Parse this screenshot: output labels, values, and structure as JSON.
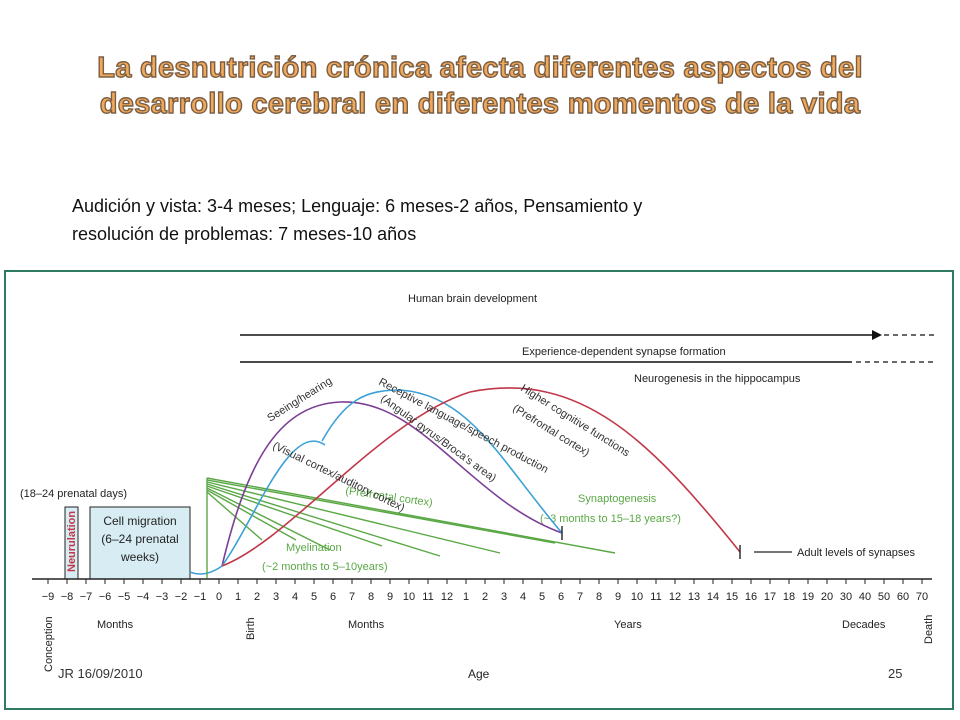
{
  "title": {
    "line1": "La desnutrición crónica afecta diferentes aspectos del",
    "line2": "desarrollo cerebral en diferentes momentos de la vida"
  },
  "subtitle": {
    "line1": "Audición y vista: 3-4 meses;  Lenguaje: 6 meses-2 años, Pensamiento y",
    "line2": "resolución de problemas: 7 meses-10 años"
  },
  "figure": {
    "header": "Human brain development",
    "bar_synapse": "Experience-dependent synapse formation",
    "bar_neurogenesis": "Neurogenesis in the hippocampus",
    "prenatal_days": "(18–24 prenatal days)",
    "neurulation": "Neurulation",
    "cell_migration": [
      "Cell migration",
      "(6–24 prenatal",
      "weeks)"
    ],
    "seeing": [
      "Seeing/hearing",
      "(Visual cortex/auditory cortex)"
    ],
    "language": [
      "Receptive language/speech production",
      "(Angular gyrus/Broca's area)"
    ],
    "cognitive": [
      "Higher cognitive functions",
      "(Prefrontal cortex)"
    ],
    "prefrontal": "(Prefrontal cortex)",
    "synaptogenesis": [
      "Synaptogenesis",
      "(~3 months to 15–18 years?)"
    ],
    "myelination": [
      "Myelination",
      "(~2 months to 5–10years)"
    ],
    "adult_levels": "Adult levels of synapses",
    "axis_ticks": [
      "−9",
      "−8",
      "−7",
      "−6",
      "−5",
      "−4",
      "−3",
      "−2",
      "−1",
      "0",
      "1",
      "2",
      "3",
      "4",
      "5",
      "6",
      "7",
      "8",
      "9",
      "10",
      "11",
      "12",
      "1",
      "2",
      "3",
      "4",
      "5",
      "6",
      "7",
      "8",
      "9",
      "10",
      "11",
      "12",
      "13",
      "14",
      "15",
      "16",
      "17",
      "18",
      "19",
      "20",
      "30",
      "40",
      "50",
      "60",
      "70"
    ],
    "axis_labels": {
      "conception": "Conception",
      "months1": "Months",
      "birth": "Birth",
      "months2": "Months",
      "years": "Years",
      "decades": "Decades",
      "death": "Death",
      "age": "Age"
    },
    "colors": {
      "green": "#5aa845",
      "purple": "#7b3e96",
      "blue": "#3aa0d6",
      "red": "#c0384a",
      "box_fill": "#d8edf3",
      "frame": "#2f7a63"
    }
  },
  "footer": {
    "left": "JR 16/09/2010",
    "right": "25"
  }
}
